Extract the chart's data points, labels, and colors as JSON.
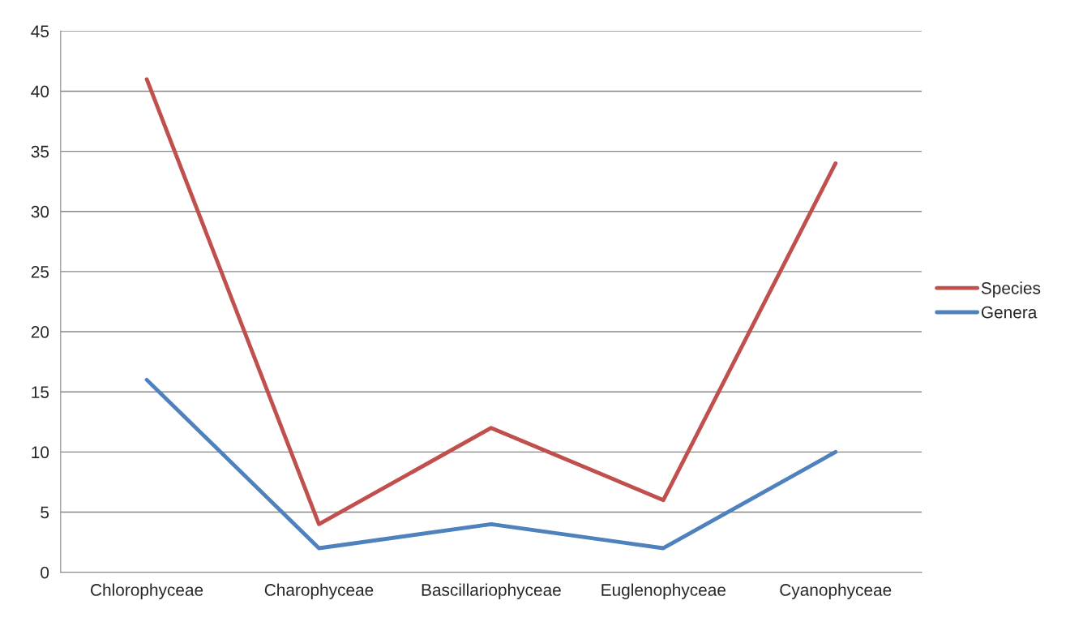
{
  "chart_data": {
    "type": "line",
    "categories": [
      "Chlorophyceae",
      "Charophyceae",
      "Bascillariophyceae",
      "Euglenophyceae",
      "Cyanophyceae"
    ],
    "series": [
      {
        "name": "Species",
        "color": "#c0504d",
        "values": [
          41,
          4,
          12,
          6,
          34
        ]
      },
      {
        "name": "Genera",
        "color": "#4f81bd",
        "values": [
          16,
          2,
          4,
          2,
          10
        ]
      }
    ],
    "ylim": [
      0,
      45
    ],
    "yticks": [
      0,
      5,
      10,
      15,
      20,
      25,
      30,
      35,
      40,
      45
    ],
    "grid": "y",
    "legend": "right",
    "marker": "none",
    "line_style": "solid"
  }
}
